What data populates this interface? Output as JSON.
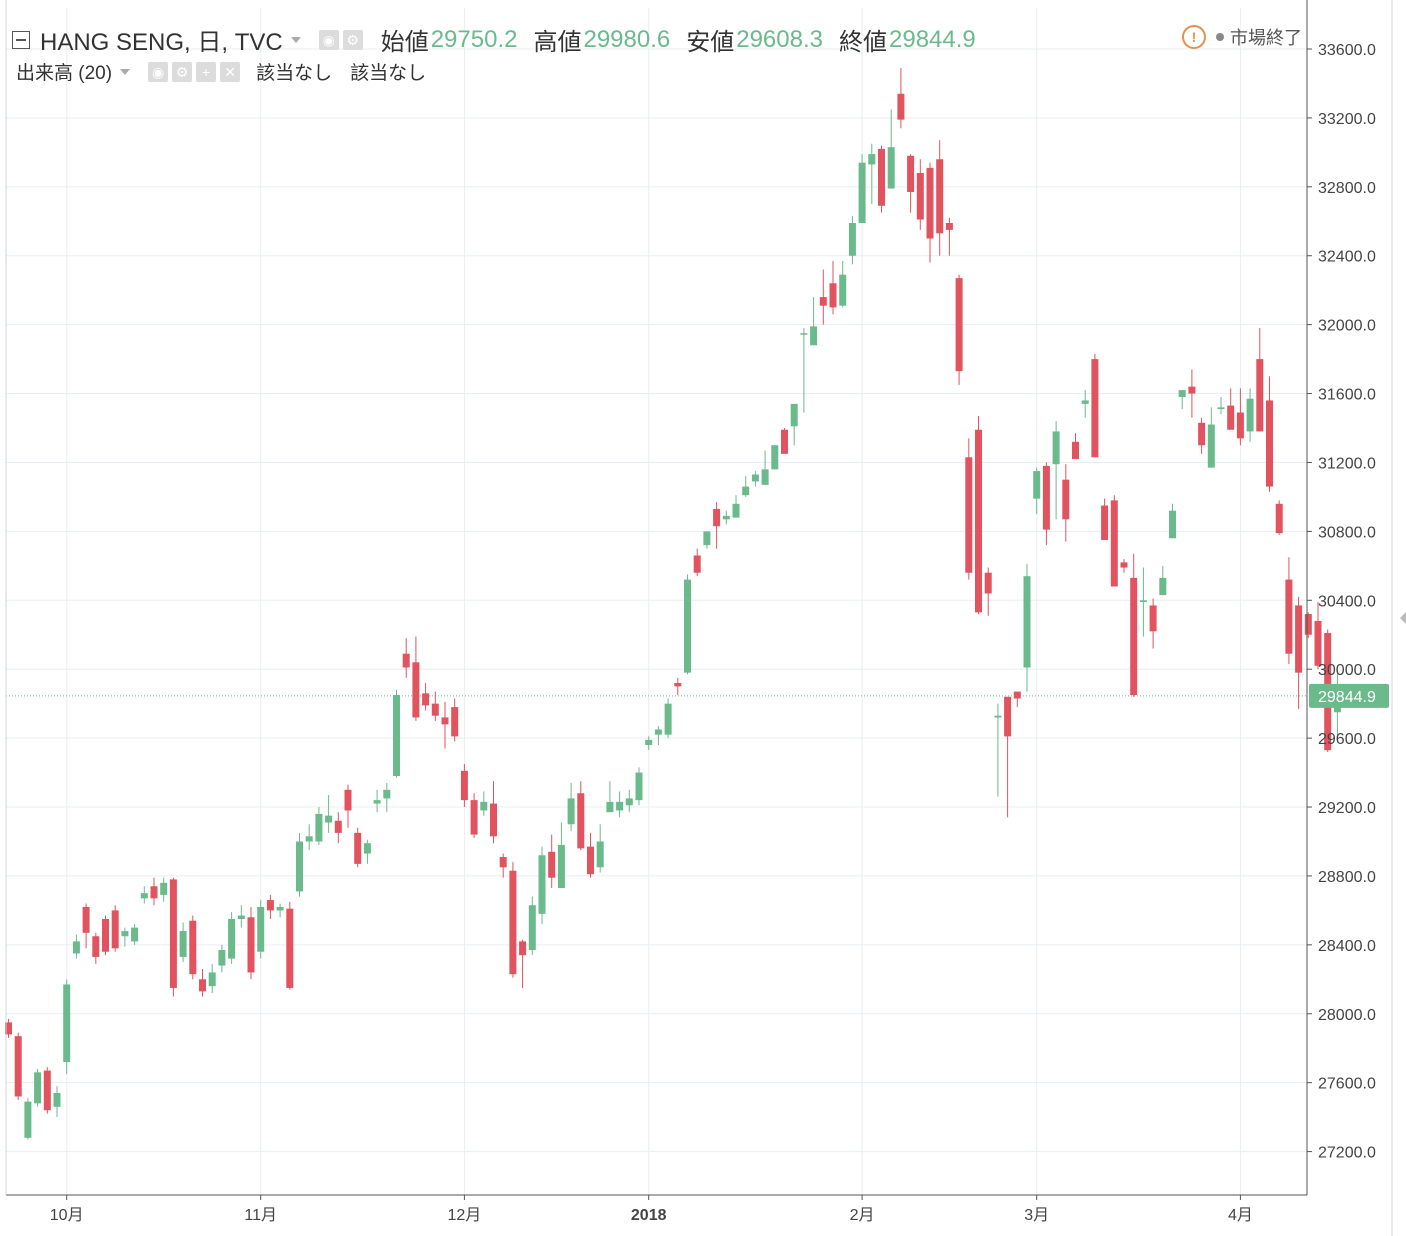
{
  "legend": {
    "title": "HANG SENG, 日, TVC",
    "open_label": "始値",
    "open": "29750.2",
    "high_label": "高値",
    "high": "29980.6",
    "low_label": "安値",
    "low": "29608.3",
    "close_label": "終値",
    "close": "29844.9"
  },
  "volume_legend": {
    "title": "出来高 (20)",
    "value1": "該当なし",
    "value2": "該当なし"
  },
  "market_status": "市場終了",
  "price_tag": "29844.9",
  "colors": {
    "up": "#6bba8c",
    "down": "#e0535f",
    "grid": "#e9eef2",
    "last_line": "#6bba8c"
  },
  "chart_data": {
    "type": "candlestick",
    "title": "HANG SENG, 日, TVC",
    "y_range": [
      26900,
      33800
    ],
    "y_ticks": [
      "27200.0",
      "27600.0",
      "28000.0",
      "28400.0",
      "28800.0",
      "29200.0",
      "29600.0",
      "30000.0",
      "30400.0",
      "30800.0",
      "31200.0",
      "31600.0",
      "32000.0",
      "32400.0",
      "32800.0",
      "33200.0",
      "33600.0"
    ],
    "x_ticks": [
      {
        "label": "10月",
        "bar": 6
      },
      {
        "label": "11月",
        "bar": 26
      },
      {
        "label": "12月",
        "bar": 47
      },
      {
        "label": "2018",
        "bar": 66
      },
      {
        "label": "2月",
        "bar": 88
      },
      {
        "label": "3月",
        "bar": 106
      },
      {
        "label": "4月",
        "bar": 127
      }
    ],
    "last_price": 29844.9,
    "candles": [
      [
        27950,
        27880,
        27970,
        27860
      ],
      [
        27870,
        27520,
        27890,
        27500
      ],
      [
        27280,
        27490,
        27510,
        27270
      ],
      [
        27480,
        27660,
        27680,
        27460
      ],
      [
        27670,
        27440,
        27690,
        27420
      ],
      [
        27460,
        27540,
        27580,
        27400
      ],
      [
        27720,
        28170,
        28200,
        27650
      ],
      [
        28350,
        28420,
        28460,
        28320
      ],
      [
        28620,
        28470,
        28640,
        28380
      ],
      [
        28450,
        28330,
        28470,
        28290
      ],
      [
        28550,
        28360,
        28570,
        28340
      ],
      [
        28600,
        28380,
        28630,
        28360
      ],
      [
        28450,
        28480,
        28500,
        28390
      ],
      [
        28420,
        28500,
        28520,
        28400
      ],
      [
        28670,
        28700,
        28740,
        28640
      ],
      [
        28740,
        28670,
        28790,
        28630
      ],
      [
        28690,
        28760,
        28790,
        28650
      ],
      [
        28780,
        28150,
        28790,
        28100
      ],
      [
        28330,
        28480,
        28530,
        28300
      ],
      [
        28540,
        28230,
        28570,
        28200
      ],
      [
        28200,
        28130,
        28260,
        28100
      ],
      [
        28160,
        28240,
        28290,
        28120
      ],
      [
        28280,
        28370,
        28400,
        28240
      ],
      [
        28320,
        28550,
        28590,
        28290
      ],
      [
        28550,
        28570,
        28630,
        28500
      ],
      [
        28560,
        28240,
        28620,
        28200
      ],
      [
        28360,
        28620,
        28660,
        28320
      ],
      [
        28660,
        28600,
        28690,
        28550
      ],
      [
        28600,
        28620,
        28640,
        28560
      ],
      [
        28610,
        28150,
        28650,
        28140
      ],
      [
        28710,
        29000,
        29050,
        28680
      ],
      [
        29000,
        29030,
        29100,
        28950
      ],
      [
        29000,
        29160,
        29200,
        28980
      ],
      [
        29110,
        29150,
        29270,
        29050
      ],
      [
        29120,
        29050,
        29170,
        28990
      ],
      [
        29300,
        29180,
        29330,
        29080
      ],
      [
        29050,
        28870,
        29080,
        28850
      ],
      [
        28930,
        28990,
        29010,
        28870
      ],
      [
        29220,
        29240,
        29300,
        29170
      ],
      [
        29250,
        29300,
        29340,
        29170
      ],
      [
        29380,
        29850,
        29880,
        29370
      ],
      [
        30090,
        30010,
        30180,
        29950
      ],
      [
        30040,
        29720,
        30190,
        29700
      ],
      [
        29860,
        29790,
        29920,
        29760
      ],
      [
        29800,
        29730,
        29870,
        29700
      ],
      [
        29720,
        29680,
        29810,
        29540
      ],
      [
        29780,
        29610,
        29830,
        29580
      ],
      [
        29410,
        29240,
        29450,
        29200
      ],
      [
        29240,
        29040,
        29280,
        29020
      ],
      [
        29180,
        29230,
        29290,
        29150
      ],
      [
        29220,
        29030,
        29350,
        28990
      ],
      [
        28910,
        28850,
        28930,
        28790
      ],
      [
        28830,
        28230,
        28880,
        28210
      ],
      [
        28420,
        28340,
        28430,
        28150
      ],
      [
        28370,
        28630,
        28680,
        28340
      ],
      [
        28580,
        28920,
        28970,
        28520
      ],
      [
        28940,
        28790,
        29040,
        28730
      ],
      [
        28730,
        28980,
        29110,
        28730
      ],
      [
        29100,
        29250,
        29340,
        29060
      ],
      [
        29280,
        28960,
        29350,
        28950
      ],
      [
        28970,
        28810,
        29050,
        28790
      ],
      [
        28850,
        29000,
        29100,
        28820
      ],
      [
        29170,
        29230,
        29350,
        29180
      ],
      [
        29180,
        29230,
        29290,
        29140
      ],
      [
        29210,
        29250,
        29300,
        29170
      ],
      [
        29240,
        29400,
        29430,
        29210
      ],
      [
        29560,
        29590,
        29610,
        29530
      ],
      [
        29620,
        29650,
        29670,
        29560
      ],
      [
        29620,
        29800,
        29830,
        29600
      ],
      [
        29920,
        29900,
        29950,
        29850
      ],
      [
        29980,
        30520,
        30550,
        29970
      ],
      [
        30660,
        30560,
        30700,
        30540
      ],
      [
        30720,
        30800,
        30750,
        30700
      ],
      [
        30930,
        30830,
        30970,
        30700
      ],
      [
        30870,
        30890,
        30920,
        30840
      ],
      [
        30880,
        30960,
        31010,
        30880
      ],
      [
        31010,
        31060,
        31120,
        31000
      ],
      [
        31090,
        31130,
        31150,
        31060
      ],
      [
        31070,
        31160,
        31270,
        31070
      ],
      [
        31160,
        31300,
        31300,
        31180
      ],
      [
        31390,
        31250,
        31400,
        31260
      ],
      [
        31410,
        31540,
        31510,
        31300
      ],
      [
        31950,
        31950,
        31980,
        31490
      ],
      [
        31880,
        31990,
        32160,
        31910
      ],
      [
        32160,
        32110,
        32320,
        32000
      ],
      [
        32240,
        32100,
        32370,
        32060
      ],
      [
        32110,
        32290,
        32370,
        32100
      ],
      [
        32400,
        32590,
        32630,
        32350
      ],
      [
        32590,
        32940,
        32990,
        32610
      ],
      [
        32930,
        32990,
        33050,
        32700
      ],
      [
        33020,
        32690,
        33040,
        32650
      ],
      [
        32790,
        33030,
        33250,
        32820
      ],
      [
        33340,
        33190,
        33490,
        33140
      ],
      [
        32980,
        32770,
        32990,
        32650
      ],
      [
        32880,
        32610,
        32960,
        32550
      ],
      [
        32910,
        32500,
        32940,
        32360
      ],
      [
        32960,
        32530,
        33070,
        32400
      ],
      [
        32590,
        32550,
        32620,
        32400
      ],
      [
        32270,
        31730,
        32290,
        31650
      ],
      [
        31230,
        30560,
        31340,
        30520
      ],
      [
        31390,
        30330,
        31470,
        30320
      ],
      [
        30560,
        30440,
        30590,
        30310
      ],
      [
        29720,
        29730,
        29800,
        29260
      ],
      [
        29840,
        29610,
        29820,
        29140
      ],
      [
        29870,
        29830,
        29840,
        29780
      ],
      [
        30010,
        30540,
        30610,
        29870
      ],
      [
        30990,
        31150,
        31170,
        30900
      ],
      [
        31180,
        30810,
        31200,
        30720
      ],
      [
        31190,
        31380,
        31440,
        30870
      ],
      [
        31100,
        30870,
        31190,
        30740
      ],
      [
        31320,
        31220,
        31370,
        31230
      ],
      [
        31540,
        31560,
        31620,
        31460
      ],
      [
        31800,
        31230,
        31830,
        31250
      ],
      [
        30950,
        30750,
        30990,
        30780
      ],
      [
        30980,
        30480,
        31010,
        30480
      ],
      [
        30620,
        30590,
        30640,
        30560
      ],
      [
        30530,
        29850,
        30670,
        29840
      ],
      [
        30390,
        30400,
        30590,
        30190
      ],
      [
        30370,
        30220,
        30410,
        30120
      ],
      [
        30430,
        30530,
        30600,
        30450
      ],
      [
        30760,
        30920,
        30960,
        30860
      ],
      [
        31580,
        31620,
        31610,
        31510
      ],
      [
        31640,
        31600,
        31740,
        31460
      ],
      [
        31430,
        31300,
        31460,
        31250
      ],
      [
        31170,
        31420,
        31520,
        31170
      ],
      [
        31510,
        31520,
        31580,
        31480
      ],
      [
        31530,
        31390,
        31630,
        31400
      ],
      [
        31490,
        31340,
        31630,
        31300
      ],
      [
        31380,
        31570,
        31630,
        31320
      ],
      [
        31800,
        31380,
        31980,
        31380
      ],
      [
        31560,
        31060,
        31700,
        31030
      ],
      [
        30960,
        30790,
        30980,
        30780
      ],
      [
        30520,
        30090,
        30650,
        30030
      ],
      [
        30370,
        29980,
        30420,
        29770
      ],
      [
        30320,
        30200,
        30330,
        30180
      ],
      [
        30280,
        30020,
        30390,
        30000
      ],
      [
        30210,
        29530,
        30230,
        29520
      ],
      [
        29750,
        29845,
        29981,
        29608
      ]
    ]
  }
}
